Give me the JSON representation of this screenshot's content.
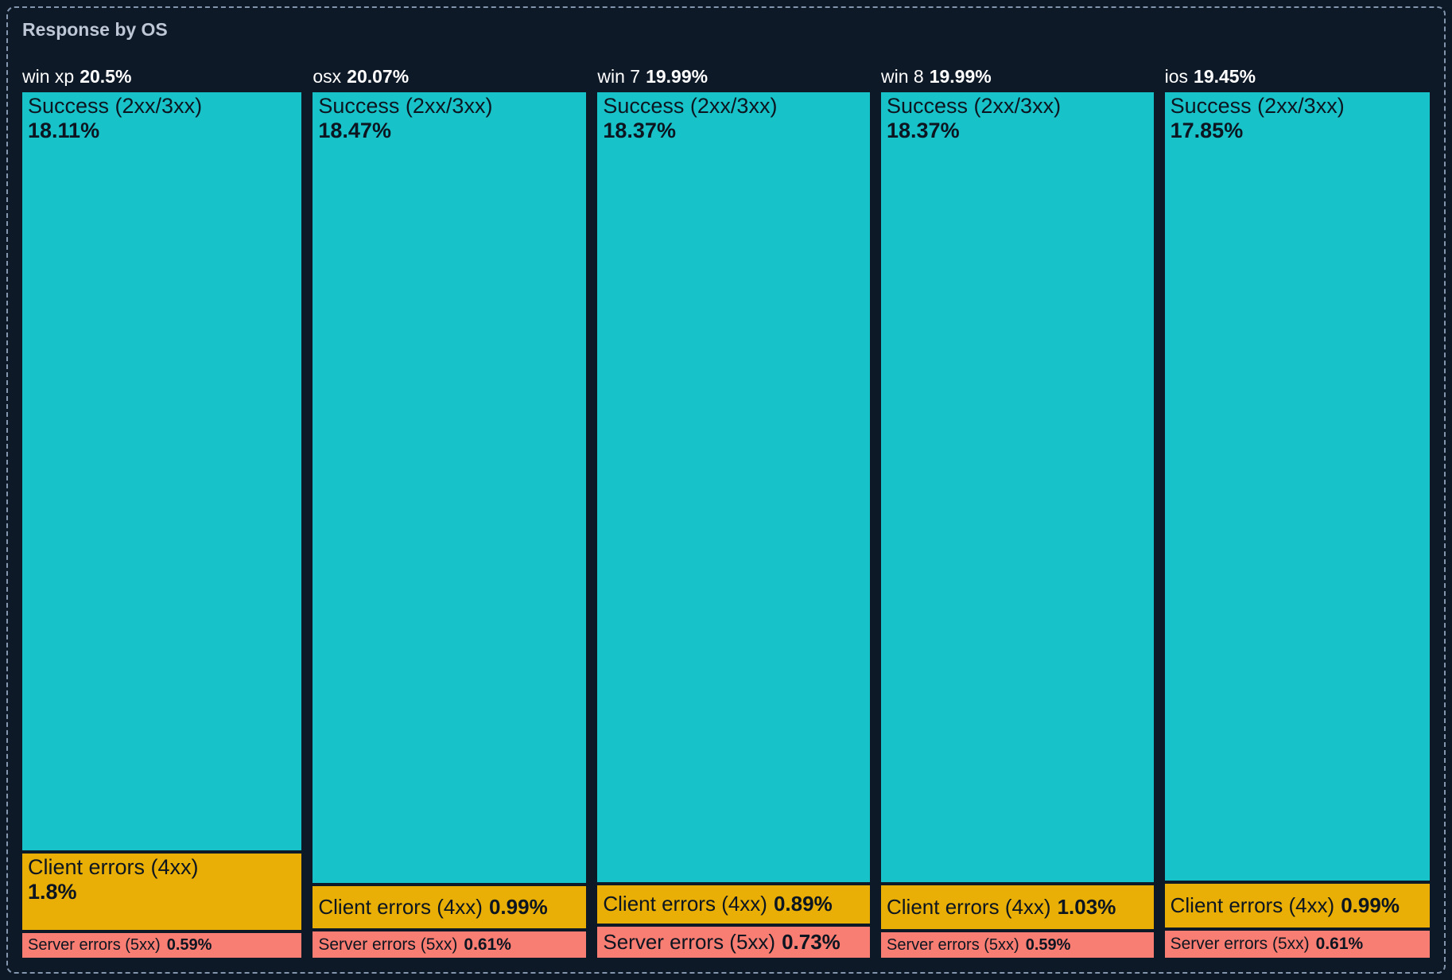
{
  "panel": {
    "title": "Response by OS"
  },
  "chart_data": {
    "type": "treemap",
    "title": "Response by OS",
    "unit": "%",
    "layout": "columns-proportional-width, segments-proportional-height, descending totals left to right",
    "colors": {
      "success": "#17c3c9",
      "client": "#e9af06",
      "server": "#f87d72",
      "background": "#0e1928",
      "border_dash": "#8496ae",
      "title_text": "#bdc7d5",
      "header_text": "#ffffff",
      "segment_text": "#0c1520"
    },
    "columns": [
      {
        "name": "win xp",
        "total": 20.5,
        "total_label": "20.5%",
        "segments": [
          {
            "key": "success",
            "label": "Success (2xx/3xx)",
            "value": 18.11,
            "value_label": "18.11%"
          },
          {
            "key": "client",
            "label": "Client errors (4xx)",
            "value": 1.8,
            "value_label": "1.8%"
          },
          {
            "key": "server",
            "label": "Server errors (5xx)",
            "value": 0.59,
            "value_label": "0.59%"
          }
        ]
      },
      {
        "name": "osx",
        "total": 20.07,
        "total_label": "20.07%",
        "segments": [
          {
            "key": "success",
            "label": "Success (2xx/3xx)",
            "value": 18.47,
            "value_label": "18.47%"
          },
          {
            "key": "client",
            "label": "Client errors (4xx)",
            "value": 0.99,
            "value_label": "0.99%"
          },
          {
            "key": "server",
            "label": "Server errors (5xx)",
            "value": 0.61,
            "value_label": "0.61%"
          }
        ]
      },
      {
        "name": "win 7",
        "total": 19.99,
        "total_label": "19.99%",
        "segments": [
          {
            "key": "success",
            "label": "Success (2xx/3xx)",
            "value": 18.37,
            "value_label": "18.37%"
          },
          {
            "key": "client",
            "label": "Client errors (4xx)",
            "value": 0.89,
            "value_label": "0.89%"
          },
          {
            "key": "server",
            "label": "Server errors (5xx)",
            "value": 0.73,
            "value_label": "0.73%"
          }
        ]
      },
      {
        "name": "win 8",
        "total": 19.99,
        "total_label": "19.99%",
        "segments": [
          {
            "key": "success",
            "label": "Success (2xx/3xx)",
            "value": 18.37,
            "value_label": "18.37%"
          },
          {
            "key": "client",
            "label": "Client errors (4xx)",
            "value": 1.03,
            "value_label": "1.03%"
          },
          {
            "key": "server",
            "label": "Server errors (5xx)",
            "value": 0.59,
            "value_label": "0.59%"
          }
        ]
      },
      {
        "name": "ios",
        "total": 19.45,
        "total_label": "19.45%",
        "segments": [
          {
            "key": "success",
            "label": "Success (2xx/3xx)",
            "value": 17.85,
            "value_label": "17.85%"
          },
          {
            "key": "client",
            "label": "Client errors (4xx)",
            "value": 0.99,
            "value_label": "0.99%"
          },
          {
            "key": "server",
            "label": "Server errors (5xx)",
            "value": 0.61,
            "value_label": "0.61%"
          }
        ]
      }
    ]
  }
}
